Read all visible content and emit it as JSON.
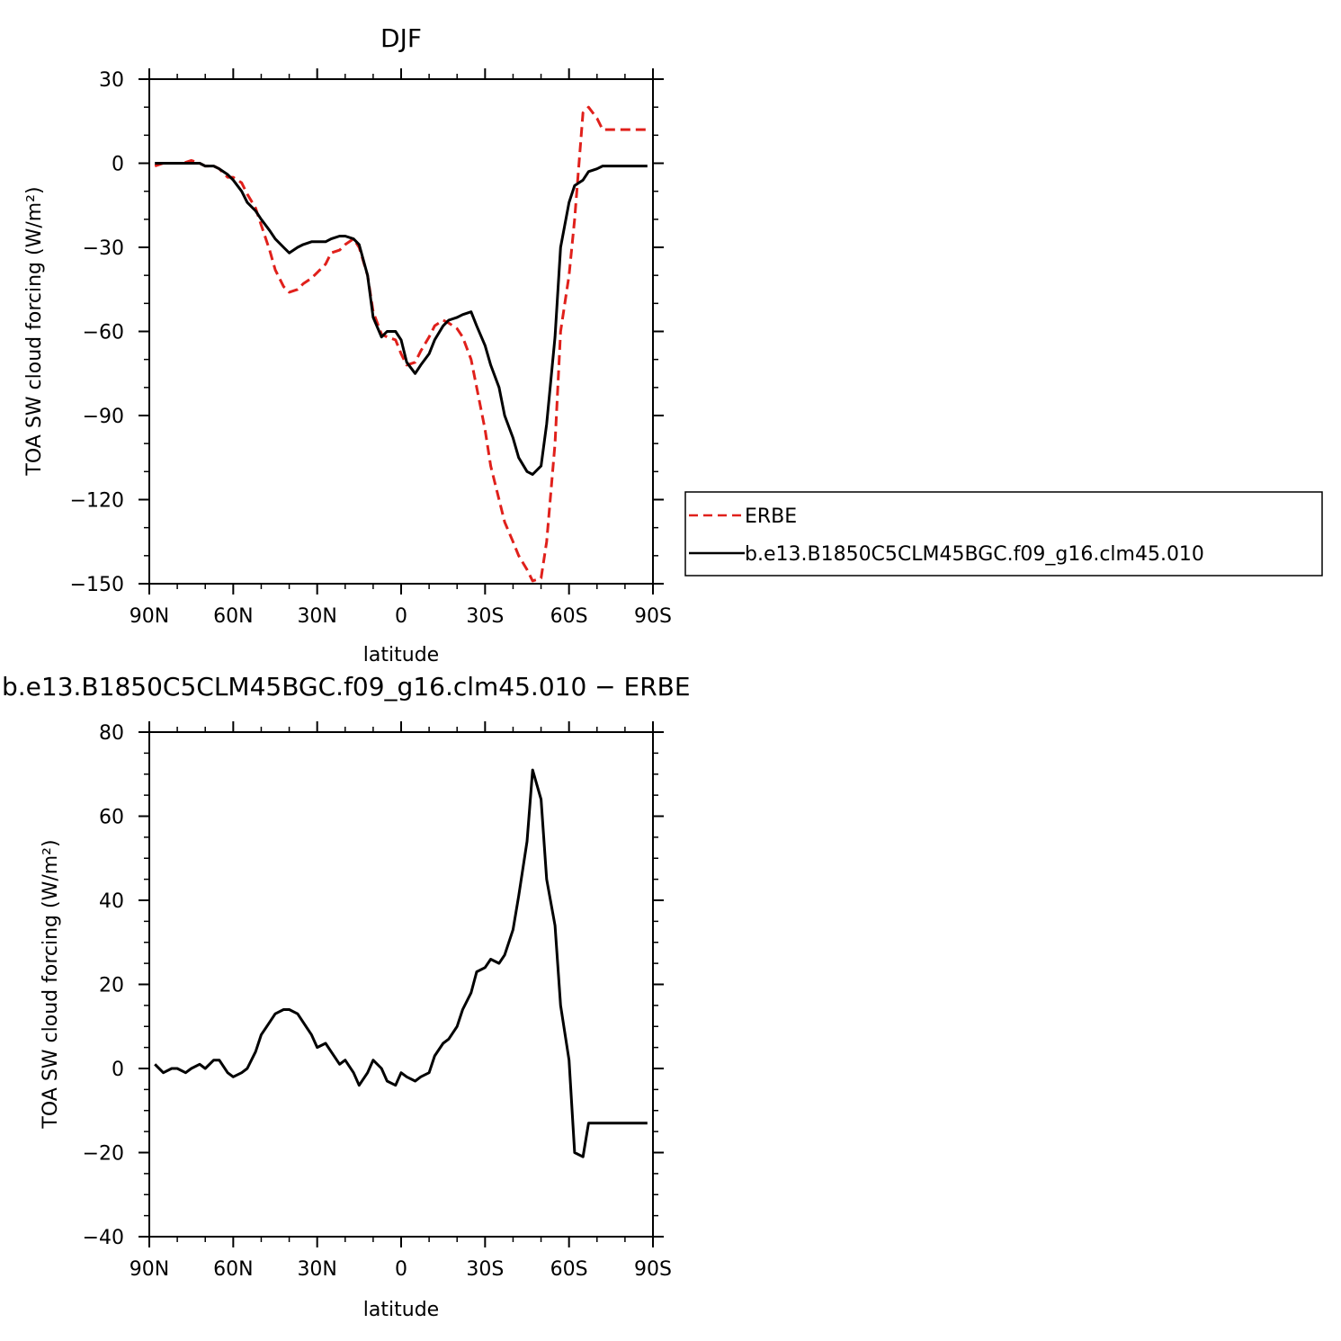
{
  "chart_data": [
    {
      "type": "line",
      "title": "DJF",
      "xlabel": "latitude",
      "ylabel": "TOA SW cloud forcing (W/m²)",
      "xlim": [
        90,
        -90
      ],
      "ylim": [
        -150,
        30
      ],
      "xticks": [
        90,
        60,
        30,
        0,
        -30,
        -60,
        -90
      ],
      "xtick_labels": [
        "90N",
        "60N",
        "30N",
        "0",
        "30S",
        "60S",
        "90S"
      ],
      "yticks": [
        30,
        0,
        -30,
        -60,
        -90,
        -120,
        -150
      ],
      "ytick_labels": [
        "30",
        "0",
        "−30",
        "−60",
        "−90",
        "−120",
        "−150"
      ],
      "legend_position": "right",
      "series": [
        {
          "name": "ERBE",
          "color": "#e0201b",
          "dash": "dashed",
          "x": [
            88,
            85,
            82,
            78,
            75,
            72,
            70,
            67,
            65,
            62,
            60,
            57,
            55,
            52,
            50,
            47,
            45,
            42,
            40,
            37,
            35,
            32,
            30,
            27,
            25,
            22,
            20,
            17,
            15,
            12,
            10,
            7,
            5,
            2,
            0,
            -2,
            -5,
            -7,
            -10,
            -12,
            -15,
            -17,
            -20,
            -22,
            -25,
            -27,
            -30,
            -32,
            -35,
            -37,
            -40,
            -42,
            -45,
            -47,
            -50,
            -52,
            -55,
            -57,
            -60,
            -62,
            -65,
            -67,
            -70,
            -72,
            -75,
            -77,
            -80,
            -82,
            -85,
            -87,
            -88
          ],
          "y": [
            -1,
            0,
            0,
            0,
            1,
            0,
            -1,
            -1,
            -2,
            -5,
            -5,
            -7,
            -11,
            -16,
            -22,
            -31,
            -38,
            -44,
            -46,
            -45,
            -43,
            -41,
            -39,
            -36,
            -32,
            -31,
            -29,
            -27,
            -30,
            -40,
            -53,
            -61,
            -62,
            -63,
            -68,
            -72,
            -71,
            -67,
            -62,
            -58,
            -56,
            -57,
            -59,
            -62,
            -70,
            -80,
            -95,
            -108,
            -120,
            -128,
            -135,
            -140,
            -145,
            -149,
            -148,
            -135,
            -100,
            -60,
            -40,
            -20,
            18,
            20,
            16,
            12,
            12,
            12,
            12,
            12,
            12,
            12,
            12
          ]
        },
        {
          "name": "b.e13.B1850C5CLM45BGC.f09_g16.clm45.010",
          "color": "#000000",
          "dash": "solid",
          "x": [
            88,
            85,
            82,
            78,
            75,
            72,
            70,
            67,
            65,
            62,
            60,
            57,
            55,
            52,
            50,
            47,
            45,
            42,
            40,
            37,
            35,
            32,
            30,
            27,
            25,
            22,
            20,
            17,
            15,
            12,
            10,
            7,
            5,
            2,
            0,
            -2,
            -5,
            -7,
            -10,
            -12,
            -15,
            -17,
            -20,
            -22,
            -25,
            -27,
            -30,
            -32,
            -35,
            -37,
            -40,
            -42,
            -45,
            -47,
            -50,
            -52,
            -55,
            -57,
            -60,
            -62,
            -65,
            -67,
            -70,
            -72,
            -75,
            -77,
            -80,
            -82,
            -85,
            -87,
            -88
          ],
          "y": [
            0,
            0,
            0,
            0,
            0,
            0,
            -1,
            -1,
            -2,
            -4,
            -6,
            -10,
            -14,
            -17,
            -20,
            -24,
            -27,
            -30,
            -32,
            -30,
            -29,
            -28,
            -28,
            -28,
            -27,
            -26,
            -26,
            -27,
            -29,
            -40,
            -55,
            -62,
            -60,
            -60,
            -63,
            -71,
            -75,
            -72,
            -68,
            -63,
            -58,
            -56,
            -55,
            -54,
            -53,
            -58,
            -65,
            -72,
            -80,
            -90,
            -98,
            -105,
            -110,
            -111,
            -108,
            -93,
            -62,
            -30,
            -14,
            -8,
            -6,
            -3,
            -2,
            -1,
            -1,
            -1,
            -1,
            -1,
            -1,
            -1,
            -1
          ]
        }
      ]
    },
    {
      "type": "line",
      "title": "b.e13.B1850C5CLM45BGC.f09_g16.clm45.010 − ERBE",
      "xlabel": "latitude",
      "ylabel": "TOA SW cloud forcing (W/m²)",
      "xlim": [
        90,
        -90
      ],
      "ylim": [
        -40,
        80
      ],
      "xticks": [
        90,
        60,
        30,
        0,
        -30,
        -60,
        -90
      ],
      "xtick_labels": [
        "90N",
        "60N",
        "30N",
        "0",
        "30S",
        "60S",
        "90S"
      ],
      "yticks": [
        80,
        60,
        40,
        20,
        0,
        -20,
        -40
      ],
      "ytick_labels": [
        "80",
        "60",
        "40",
        "20",
        "0",
        "−20",
        "−40"
      ],
      "series": [
        {
          "name": "",
          "color": "#000000",
          "dash": "solid",
          "x": [
            88,
            85,
            82,
            80,
            77,
            75,
            72,
            70,
            67,
            65,
            62,
            60,
            57,
            55,
            52,
            50,
            47,
            45,
            42,
            40,
            37,
            35,
            32,
            30,
            27,
            25,
            22,
            20,
            17,
            15,
            12,
            10,
            7,
            5,
            2,
            0,
            -2,
            -5,
            -7,
            -10,
            -12,
            -15,
            -17,
            -20,
            -22,
            -25,
            -27,
            -30,
            -32,
            -35,
            -37,
            -40,
            -42,
            -45,
            -47,
            -50,
            -52,
            -55,
            -57,
            -60,
            -62,
            -65,
            -67,
            -70,
            -72,
            -75,
            -77,
            -80,
            -82,
            -85,
            -87,
            -88
          ],
          "y": [
            1,
            -1,
            0,
            0,
            -1,
            0,
            1,
            0,
            2,
            2,
            -1,
            -2,
            -1,
            0,
            4,
            8,
            11,
            13,
            14,
            14,
            13,
            11,
            8,
            5,
            6,
            4,
            1,
            2,
            -1,
            -4,
            -1,
            2,
            0,
            -3,
            -4,
            -1,
            -2,
            -3,
            -2,
            -1,
            3,
            6,
            7,
            10,
            14,
            18,
            23,
            24,
            26,
            25,
            27,
            33,
            41,
            54,
            71,
            64,
            45,
            34,
            15,
            2,
            -20,
            -21,
            -13,
            -13,
            -13,
            -13,
            -13,
            -13,
            -13,
            -13,
            -13,
            -13
          ]
        }
      ]
    }
  ]
}
